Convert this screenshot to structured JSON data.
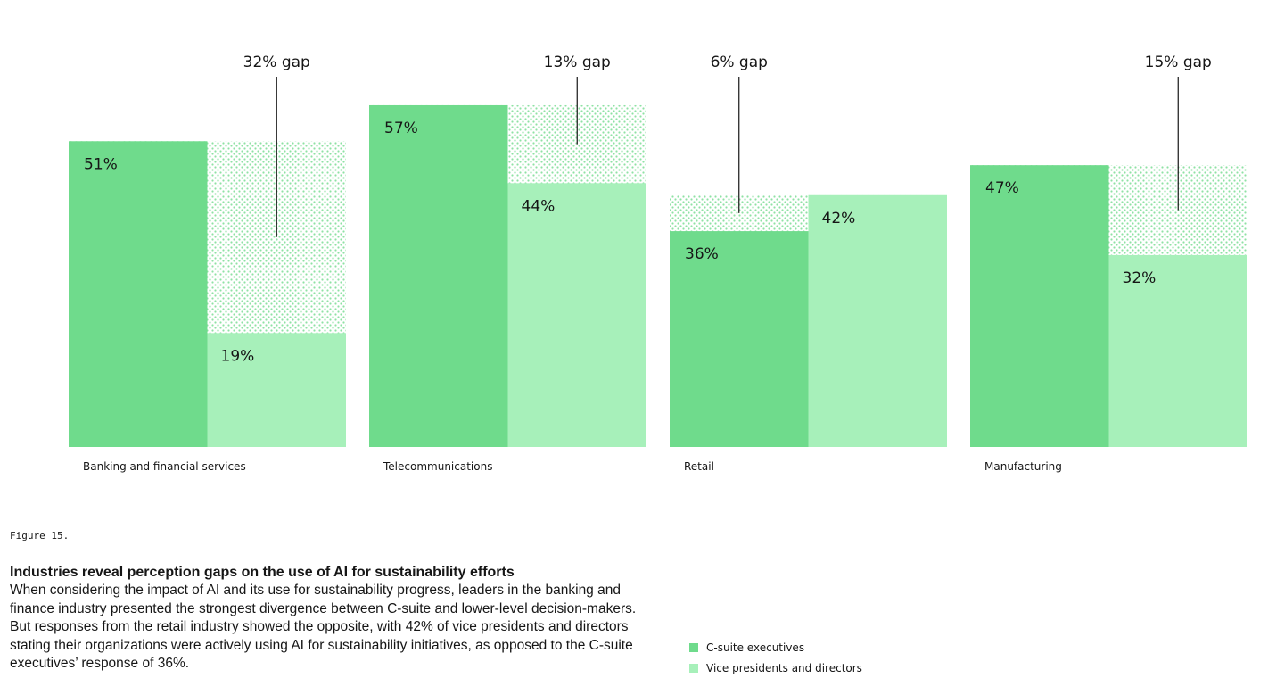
{
  "colors": {
    "c_suite": "#6fdb8c",
    "vp": "#a7f0ba",
    "gap_dot": "#8ee2a4",
    "line": "#161616"
  },
  "chart_data": {
    "type": "bar",
    "categories": [
      "Banking and financial services",
      "Telecommunications",
      "Retail",
      "Manufacturing"
    ],
    "series": [
      {
        "name": "C-suite executives",
        "values": [
          51,
          57,
          36,
          47
        ]
      },
      {
        "name": "Vice presidents and directors",
        "values": [
          19,
          44,
          42,
          32
        ]
      }
    ],
    "value_labels": [
      [
        "51%",
        "19%"
      ],
      [
        "57%",
        "44%"
      ],
      [
        "36%",
        "42%"
      ],
      [
        "47%",
        "32%"
      ]
    ],
    "gaps": [
      {
        "value": 32,
        "label": "32% gap"
      },
      {
        "value": 13,
        "label": "13% gap"
      },
      {
        "value": 6,
        "label": "6% gap"
      },
      {
        "value": 15,
        "label": "15% gap"
      }
    ],
    "ylim": [
      0,
      70
    ],
    "grid": false,
    "legend_position": "bottom-right"
  },
  "figure": {
    "label": "Figure 15.",
    "title": "Industries reveal perception gaps on the use of AI for sustainability efforts",
    "body": "When considering the impact of AI and its use for sustainability progress, leaders in the banking and finance industry presented the strongest divergence between C-suite and lower-level decision-makers. But responses from the retail industry showed the opposite, with 42% of vice presidents and directors stating their organizations were actively using AI for sustainability initiatives, as opposed to the C-suite executives’ response of 36%."
  },
  "legend": {
    "items": [
      {
        "label": "C-suite executives"
      },
      {
        "label": "Vice presidents and directors"
      }
    ]
  }
}
